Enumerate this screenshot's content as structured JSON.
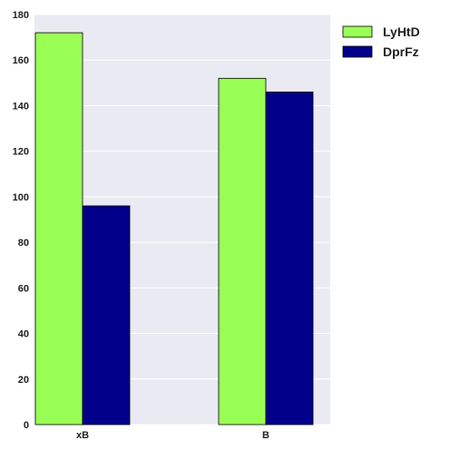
{
  "chart_data": {
    "type": "bar",
    "categories": [
      "xB",
      "B"
    ],
    "series": [
      {
        "name": "LyHtD",
        "values": [
          172,
          152
        ],
        "color": "#99ff55"
      },
      {
        "name": "DprFz",
        "values": [
          96,
          146
        ],
        "color": "#00008b"
      }
    ],
    "title": "",
    "xlabel": "",
    "ylabel": "",
    "ylim": [
      0,
      180
    ],
    "yticks": [
      "0",
      "20",
      "40",
      "60",
      "80",
      "100",
      "120",
      "140",
      "160",
      "180"
    ],
    "grid": true,
    "legend_position": "top-right-outside",
    "background_color": "#eaeaf2",
    "grid_color": "#ffffff"
  }
}
